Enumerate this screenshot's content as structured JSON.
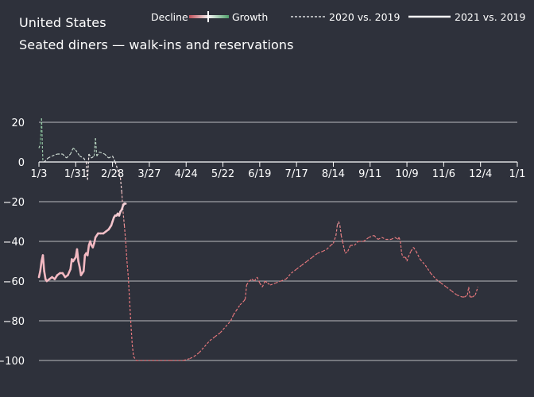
{
  "header": {
    "title": "United States",
    "subtitle": "Seated diners — walk-ins and reservations"
  },
  "legend": {
    "decline_label": "Decline",
    "growth_label": "Growth",
    "series_2020_label": "2020 vs. 2019",
    "series_2021_label": "2021 vs. 2019"
  },
  "colors": {
    "background": "#2e313b",
    "grid": "#ffffff",
    "decline": "#e88a8a",
    "growth": "#4fa06a",
    "line_2021": "#f3b9c2"
  },
  "chart_data": {
    "type": "line",
    "title": "Seated diners — walk-ins and reservations",
    "subtitle": "United States",
    "xlabel": "",
    "ylabel": "",
    "x_ticks": [
      "1/3",
      "1/31",
      "2/28",
      "3/27",
      "4/24",
      "5/22",
      "6/19",
      "7/17",
      "8/14",
      "9/11",
      "10/9",
      "11/6",
      "12/4",
      "1/1"
    ],
    "y_ticks": [
      20,
      0,
      -20,
      -40,
      -60,
      -80,
      -100
    ],
    "ylim": [
      -100,
      22
    ],
    "xlim_days": [
      0,
      364
    ],
    "grid": true,
    "legend_position": "top",
    "series": [
      {
        "name": "2020 vs. 2019",
        "style": "dashed",
        "points": [
          [
            0,
            7
          ],
          [
            1,
            9
          ],
          [
            2,
            22
          ],
          [
            3,
            0
          ],
          [
            4,
            0
          ],
          [
            7,
            2
          ],
          [
            10,
            3
          ],
          [
            14,
            4
          ],
          [
            18,
            4
          ],
          [
            21,
            2
          ],
          [
            24,
            4
          ],
          [
            26,
            7
          ],
          [
            28,
            6
          ],
          [
            31,
            3
          ],
          [
            34,
            2
          ],
          [
            36,
            0
          ],
          [
            37,
            -9
          ],
          [
            38,
            4
          ],
          [
            40,
            2
          ],
          [
            42,
            3
          ],
          [
            43,
            12
          ],
          [
            44,
            3
          ],
          [
            46,
            5
          ],
          [
            50,
            4
          ],
          [
            53,
            2
          ],
          [
            56,
            3
          ],
          [
            58,
            0
          ],
          [
            60,
            -4
          ],
          [
            62,
            -8
          ],
          [
            63,
            -15
          ],
          [
            64,
            -25
          ],
          [
            65,
            -32
          ],
          [
            66,
            -40
          ],
          [
            67,
            -50
          ],
          [
            68,
            -58
          ],
          [
            69,
            -70
          ],
          [
            70,
            -82
          ],
          [
            71,
            -92
          ],
          [
            72,
            -98
          ],
          [
            74,
            -100
          ],
          [
            80,
            -100
          ],
          [
            100,
            -100
          ],
          [
            110,
            -100
          ],
          [
            115,
            -99
          ],
          [
            118,
            -98
          ],
          [
            122,
            -96
          ],
          [
            126,
            -93
          ],
          [
            130,
            -90
          ],
          [
            134,
            -88
          ],
          [
            138,
            -86
          ],
          [
            142,
            -83
          ],
          [
            146,
            -80
          ],
          [
            148,
            -77
          ],
          [
            150,
            -75
          ],
          [
            153,
            -72
          ],
          [
            156,
            -70
          ],
          [
            157,
            -69
          ],
          [
            158,
            -62
          ],
          [
            160,
            -60
          ],
          [
            162,
            -59
          ],
          [
            164,
            -60
          ],
          [
            166,
            -58
          ],
          [
            168,
            -61
          ],
          [
            170,
            -63
          ],
          [
            172,
            -60
          ],
          [
            174,
            -61
          ],
          [
            176,
            -62
          ],
          [
            180,
            -61
          ],
          [
            184,
            -60
          ],
          [
            188,
            -59
          ],
          [
            192,
            -56
          ],
          [
            196,
            -54
          ],
          [
            200,
            -52
          ],
          [
            204,
            -50
          ],
          [
            208,
            -48
          ],
          [
            212,
            -46
          ],
          [
            216,
            -45
          ],
          [
            219,
            -44
          ],
          [
            222,
            -42
          ],
          [
            224,
            -41
          ],
          [
            226,
            -37
          ],
          [
            227,
            -32
          ],
          [
            228,
            -30
          ],
          [
            229,
            -32
          ],
          [
            230,
            -37
          ],
          [
            231,
            -40
          ],
          [
            233,
            -46
          ],
          [
            235,
            -45
          ],
          [
            237,
            -42
          ],
          [
            240,
            -42
          ],
          [
            243,
            -40
          ],
          [
            247,
            -40
          ],
          [
            251,
            -38
          ],
          [
            255,
            -37
          ],
          [
            258,
            -39
          ],
          [
            261,
            -38
          ],
          [
            264,
            -39
          ],
          [
            268,
            -39
          ],
          [
            271,
            -38
          ],
          [
            273,
            -39
          ],
          [
            274,
            -38
          ],
          [
            275,
            -40
          ],
          [
            276,
            -46
          ],
          [
            277,
            -48
          ],
          [
            279,
            -48
          ],
          [
            280,
            -50
          ],
          [
            281,
            -48
          ],
          [
            283,
            -45
          ],
          [
            285,
            -43
          ],
          [
            287,
            -45
          ],
          [
            290,
            -49
          ],
          [
            294,
            -52
          ],
          [
            298,
            -56
          ],
          [
            302,
            -59
          ],
          [
            306,
            -61
          ],
          [
            310,
            -63
          ],
          [
            314,
            -65
          ],
          [
            318,
            -67
          ],
          [
            322,
            -68
          ],
          [
            324,
            -68
          ],
          [
            326,
            -67
          ],
          [
            327,
            -63
          ],
          [
            328,
            -68
          ],
          [
            330,
            -68
          ],
          [
            332,
            -67
          ],
          [
            334,
            -63
          ]
        ]
      },
      {
        "name": "2021 vs. 2019",
        "style": "solid",
        "points": [
          [
            0,
            -58
          ],
          [
            1,
            -55
          ],
          [
            2,
            -50
          ],
          [
            3,
            -47
          ],
          [
            4,
            -55
          ],
          [
            5,
            -59
          ],
          [
            6,
            -60
          ],
          [
            8,
            -59
          ],
          [
            10,
            -58
          ],
          [
            12,
            -59
          ],
          [
            14,
            -57
          ],
          [
            16,
            -56
          ],
          [
            18,
            -56
          ],
          [
            20,
            -58
          ],
          [
            22,
            -57
          ],
          [
            24,
            -54
          ],
          [
            25,
            -49
          ],
          [
            26,
            -50
          ],
          [
            27,
            -49
          ],
          [
            28,
            -48
          ],
          [
            29,
            -44
          ],
          [
            30,
            -50
          ],
          [
            31,
            -53
          ],
          [
            32,
            -57
          ],
          [
            33,
            -56
          ],
          [
            34,
            -55
          ],
          [
            35,
            -47
          ],
          [
            36,
            -46
          ],
          [
            37,
            -47
          ],
          [
            38,
            -42
          ],
          [
            39,
            -40
          ],
          [
            40,
            -42
          ],
          [
            41,
            -43
          ],
          [
            42,
            -41
          ],
          [
            43,
            -38
          ],
          [
            44,
            -37
          ],
          [
            45,
            -36
          ],
          [
            47,
            -36
          ],
          [
            49,
            -36
          ],
          [
            51,
            -35
          ],
          [
            53,
            -34
          ],
          [
            54,
            -33
          ],
          [
            55,
            -32
          ],
          [
            56,
            -30
          ],
          [
            57,
            -28
          ],
          [
            58,
            -27
          ],
          [
            59,
            -27
          ],
          [
            60,
            -26
          ],
          [
            61,
            -27
          ],
          [
            62,
            -25
          ],
          [
            63,
            -24
          ],
          [
            64,
            -22
          ],
          [
            65,
            -21
          ],
          [
            66,
            -21
          ]
        ]
      }
    ]
  }
}
